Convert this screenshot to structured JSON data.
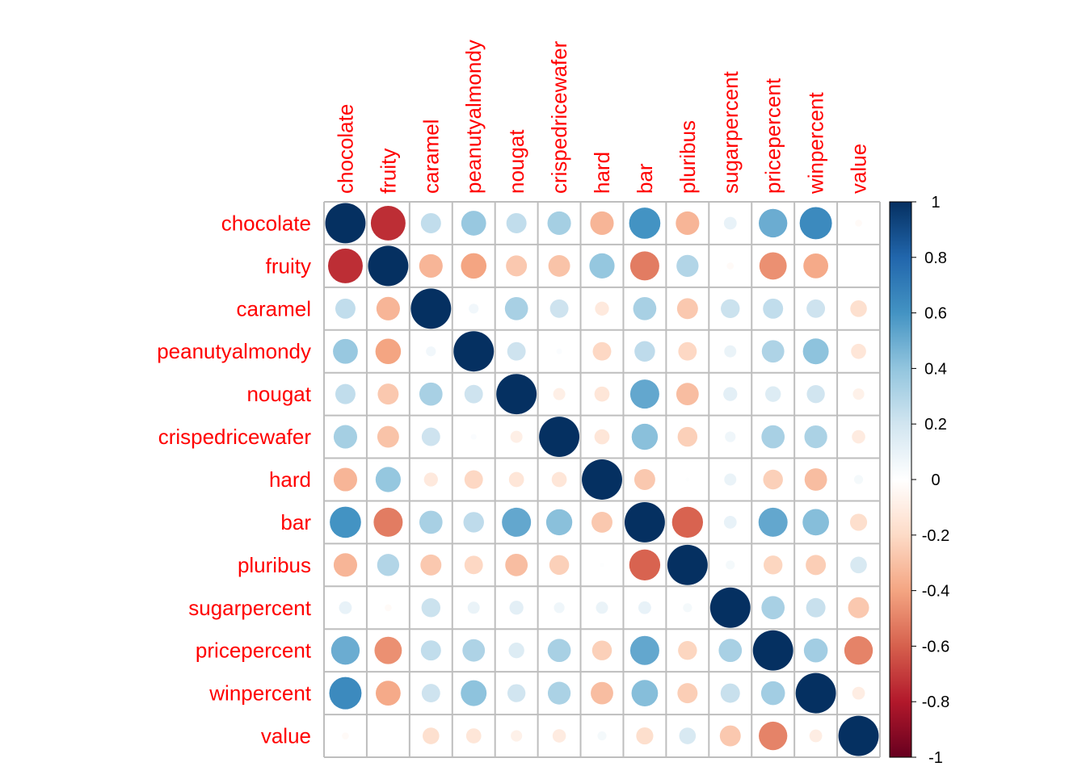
{
  "chart_data": {
    "type": "heatmap",
    "subtype": "corrplot-circle",
    "title": "",
    "variables": [
      "chocolate",
      "fruity",
      "caramel",
      "peanutyalmondy",
      "nougat",
      "crispedricewafer",
      "hard",
      "bar",
      "pluribus",
      "sugarpercent",
      "pricepercent",
      "winpercent",
      "value"
    ],
    "matrix": [
      [
        1.0,
        -0.74,
        0.25,
        0.38,
        0.25,
        0.34,
        -0.34,
        0.6,
        -0.34,
        0.1,
        0.5,
        0.64,
        -0.03
      ],
      [
        -0.74,
        1.0,
        -0.34,
        -0.4,
        -0.27,
        -0.29,
        0.39,
        -0.52,
        0.3,
        -0.03,
        -0.46,
        -0.38,
        0.0
      ],
      [
        0.25,
        -0.34,
        1.0,
        0.06,
        0.33,
        0.21,
        -0.12,
        0.33,
        -0.27,
        0.22,
        0.25,
        0.21,
        -0.17
      ],
      [
        0.38,
        -0.4,
        0.06,
        1.0,
        0.21,
        0.02,
        -0.21,
        0.26,
        -0.21,
        0.09,
        0.31,
        0.41,
        -0.14
      ],
      [
        0.25,
        -0.27,
        0.33,
        0.21,
        1.0,
        -0.09,
        -0.14,
        0.52,
        -0.31,
        0.12,
        0.15,
        0.2,
        -0.08
      ],
      [
        0.34,
        -0.29,
        0.21,
        0.02,
        -0.09,
        1.0,
        -0.14,
        0.42,
        -0.24,
        0.07,
        0.33,
        0.32,
        -0.11
      ],
      [
        -0.34,
        0.39,
        -0.12,
        -0.21,
        -0.14,
        -0.14,
        1.0,
        -0.27,
        0.01,
        0.09,
        -0.24,
        -0.31,
        0.05
      ],
      [
        0.6,
        -0.52,
        0.33,
        0.26,
        0.52,
        0.42,
        -0.27,
        1.0,
        -0.59,
        0.1,
        0.52,
        0.43,
        -0.18
      ],
      [
        -0.34,
        0.3,
        -0.27,
        -0.21,
        -0.31,
        -0.24,
        0.01,
        -0.59,
        1.0,
        0.05,
        -0.22,
        -0.25,
        0.17
      ],
      [
        0.1,
        -0.03,
        0.22,
        0.09,
        0.12,
        0.07,
        0.09,
        0.1,
        0.05,
        1.0,
        0.33,
        0.23,
        -0.27
      ],
      [
        0.5,
        -0.46,
        0.25,
        0.31,
        0.15,
        0.33,
        -0.24,
        0.52,
        -0.22,
        0.33,
        1.0,
        0.35,
        -0.5
      ],
      [
        0.64,
        -0.38,
        0.21,
        0.41,
        0.2,
        0.32,
        -0.31,
        0.43,
        -0.25,
        0.23,
        0.35,
        1.0,
        -0.1
      ],
      [
        -0.03,
        0.0,
        -0.17,
        -0.14,
        -0.08,
        -0.11,
        0.05,
        -0.18,
        0.17,
        -0.27,
        -0.5,
        -0.1,
        1.0
      ]
    ],
    "colorbar": {
      "range": [
        -1,
        1
      ],
      "ticks": [
        "1",
        "0.8",
        "0.6",
        "0.4",
        "0.2",
        "0",
        "-0.2",
        "-0.4",
        "-0.6",
        "-0.8",
        "-1"
      ],
      "tick_values": [
        1,
        0.8,
        0.6,
        0.4,
        0.2,
        0,
        -0.2,
        -0.4,
        -0.6,
        -0.8,
        -1
      ],
      "colors": [
        "#67001F",
        "#B2182B",
        "#D6604D",
        "#F4A582",
        "#FDDBC7",
        "#FFFFFF",
        "#D1E5F0",
        "#92C5DE",
        "#4393C3",
        "#2166AC",
        "#053061"
      ],
      "placement": "right"
    },
    "label_color": "#FF0000",
    "grid_color": "#BEBEBE",
    "xlabel": "",
    "ylabel": ""
  }
}
